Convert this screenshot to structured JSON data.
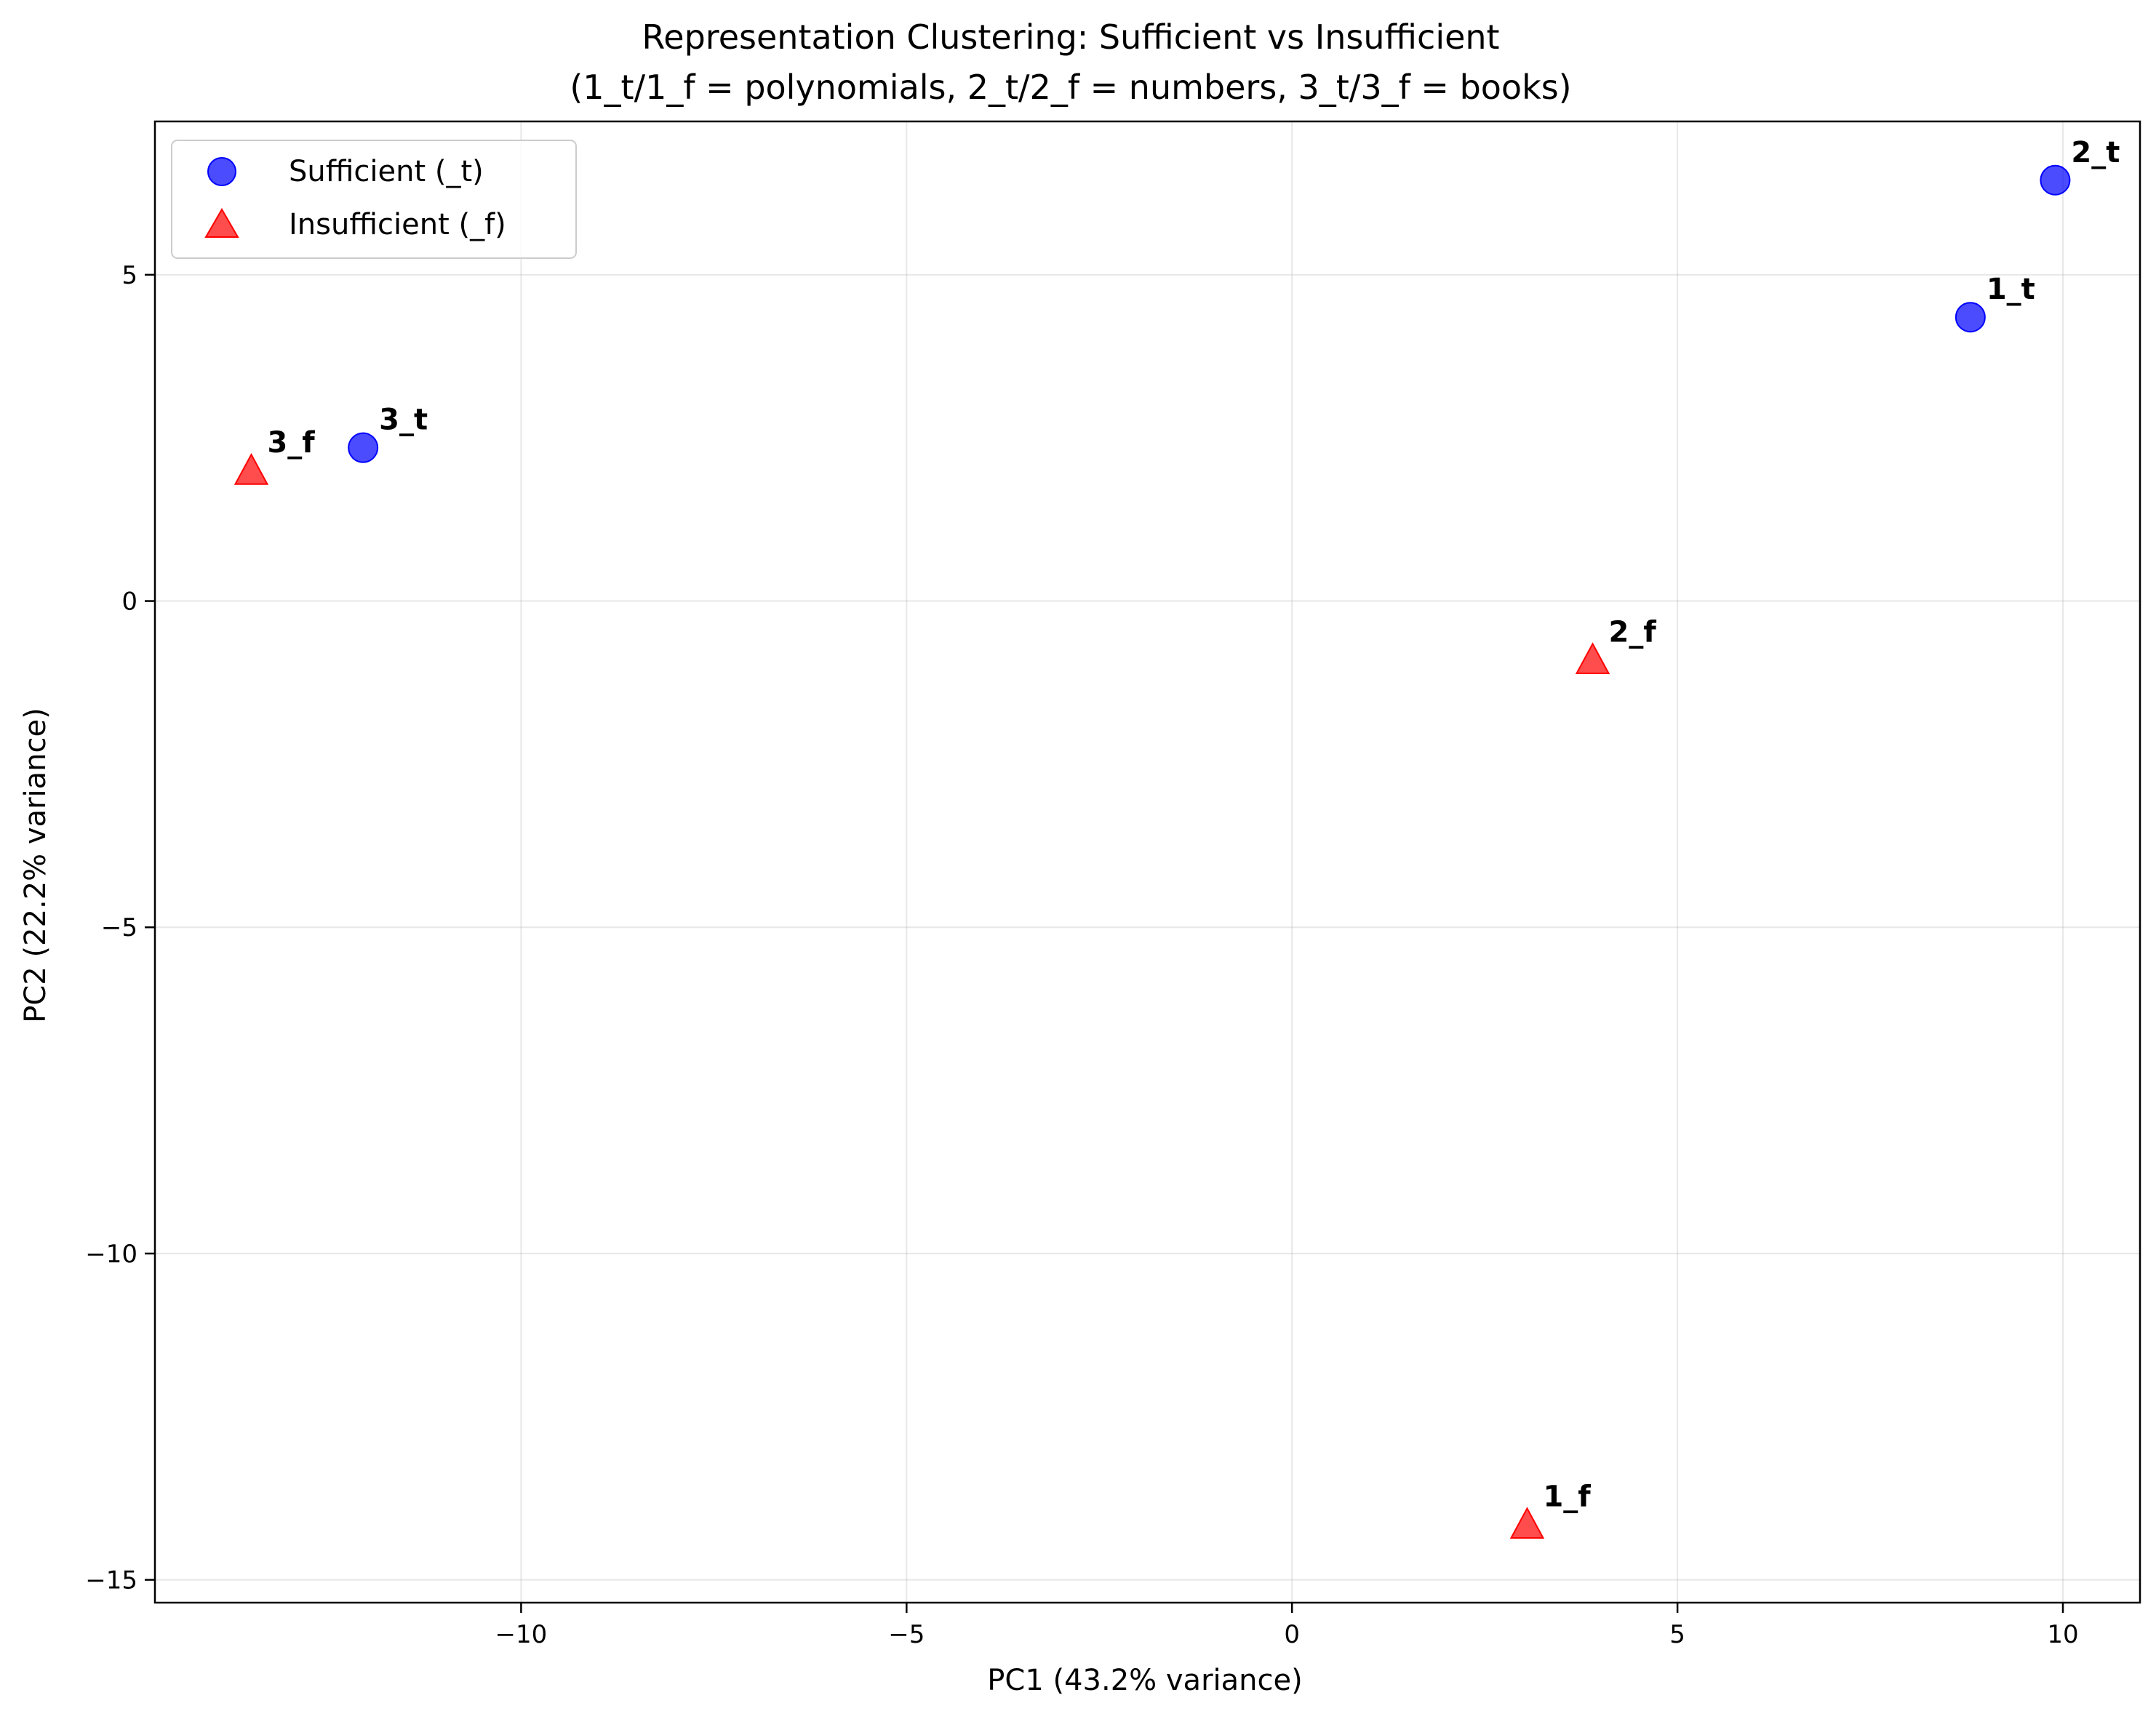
{
  "chart_data": {
    "type": "scatter",
    "title": "Representation Clustering: Sufficient vs Insufficient",
    "subtitle": "(1_t/1_f = polynomials, 2_t/2_f = numbers, 3_t/3_f = books)",
    "xlabel": "PC1 (43.2% variance)",
    "ylabel": "PC2 (22.2% variance)",
    "xlim": [
      -14.75,
      11.0
    ],
    "ylim": [
      -15.35,
      7.35
    ],
    "xticks": [
      -10,
      -5,
      0,
      5,
      10
    ],
    "yticks": [
      -15,
      -10,
      -5,
      0,
      5
    ],
    "xtick_labels": [
      "−10",
      "−5",
      "0",
      "5",
      "10"
    ],
    "ytick_labels": [
      "−15",
      "−10",
      "−5",
      "0",
      "5"
    ],
    "grid": true,
    "legend_position": "top-left",
    "series": [
      {
        "name": "Sufficient (_t)",
        "marker": "circle",
        "color": "#0000ff",
        "points": [
          {
            "label": "1_t",
            "x": 8.8,
            "y": 4.35
          },
          {
            "label": "2_t",
            "x": 9.9,
            "y": 6.45
          },
          {
            "label": "3_t",
            "x": -12.05,
            "y": 2.35
          }
        ]
      },
      {
        "name": "Insufficient (_f)",
        "marker": "triangle",
        "color": "#ff0000",
        "points": [
          {
            "label": "1_f",
            "x": 3.05,
            "y": -14.15
          },
          {
            "label": "2_f",
            "x": 3.9,
            "y": -0.9
          },
          {
            "label": "3_f",
            "x": -13.5,
            "y": 2.0
          }
        ]
      }
    ]
  }
}
